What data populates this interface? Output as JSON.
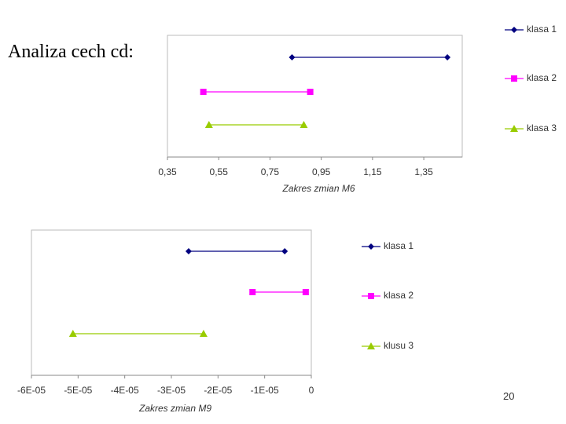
{
  "slide_title": "Analiza cech cd:",
  "page_number": "20",
  "chart_data": [
    {
      "type": "range",
      "xlabel": "Zakres zmian M6",
      "xlim": [
        0.35,
        1.5
      ],
      "xticks": [
        {
          "value": 0.35,
          "label": "0,35"
        },
        {
          "value": 0.55,
          "label": "0,55"
        },
        {
          "value": 0.75,
          "label": "0,75"
        },
        {
          "value": 0.95,
          "label": "0,95"
        },
        {
          "value": 1.15,
          "label": "1,15"
        },
        {
          "value": 1.35,
          "label": "1,35"
        }
      ],
      "series": [
        {
          "name": "klasa 1",
          "color": "#000080",
          "marker": "diamond",
          "values": [
            0.836,
            1.442
          ]
        },
        {
          "name": "klasa 2",
          "color": "#ff00ff",
          "marker": "square",
          "values": [
            0.49,
            0.907
          ]
        },
        {
          "name": "klasa 3",
          "color": "#99cc00",
          "marker": "triangle",
          "values": [
            0.512,
            0.882
          ]
        }
      ]
    },
    {
      "type": "range",
      "xlabel": "Zakres zmian M9",
      "xlim": [
        -6e-05,
        0
      ],
      "xticks": [
        {
          "value": -6e-05,
          "label": "-6E-05"
        },
        {
          "value": -5e-05,
          "label": "-5E-05"
        },
        {
          "value": -4e-05,
          "label": "-4E-05"
        },
        {
          "value": -3e-05,
          "label": "-3E-05"
        },
        {
          "value": -2e-05,
          "label": "-2E-05"
        },
        {
          "value": -1e-05,
          "label": "-1E-05"
        },
        0
      ],
      "series": [
        {
          "name": "klasa 1",
          "color": "#000080",
          "marker": "diamond",
          "values": [
            -2.63e-05,
            -5.7e-06
          ]
        },
        {
          "name": "klasa 2",
          "color": "#ff00ff",
          "marker": "square",
          "values": [
            -1.26e-05,
            -1.2e-06
          ]
        },
        {
          "name": "klusu 3",
          "color": "#99cc00",
          "marker": "triangle",
          "values": [
            -5.11e-05,
            -2.31e-05
          ]
        }
      ]
    }
  ]
}
